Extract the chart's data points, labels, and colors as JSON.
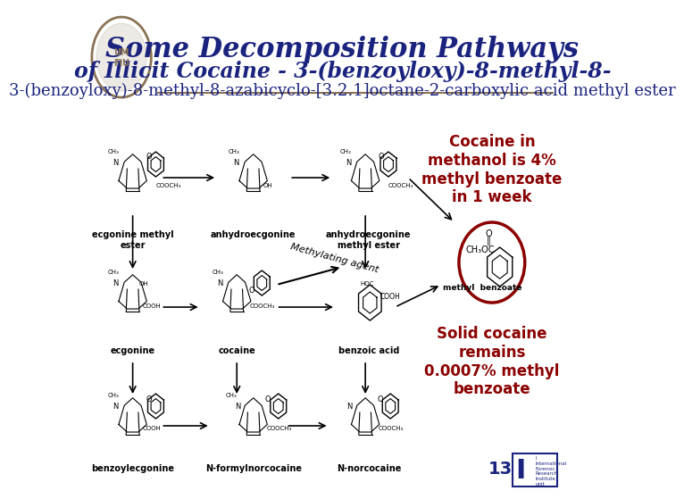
{
  "bg_color": "#ffffff",
  "header_bg": "#ffffff",
  "title_line1": "Some Decomposition Pathways",
  "title_line2": "of Illicit Cocaine -",
  "title_subtitle": "3-(benzoyloxy)-8-methyl-8-azabicyclo-[3.2.1]octane-2-carboxylic acid methyl ester",
  "title_color": "#1a237e",
  "title_fontsize": 22,
  "subtitle_fontsize": 13,
  "separator_color": "#8B7355",
  "annotation1_title": "Cocaine in\nmethanol is 4%\nmethyl benzoate\nin 1 week",
  "annotation2_title": "Solid cocaine\nremains\n0.0007% methyl\nbenzoate",
  "annotation_color": "#8B0000",
  "annotation_fontsize": 12,
  "page_number": "13",
  "methylating_text": "Methylating agent",
  "logo_color": "#8B7355"
}
